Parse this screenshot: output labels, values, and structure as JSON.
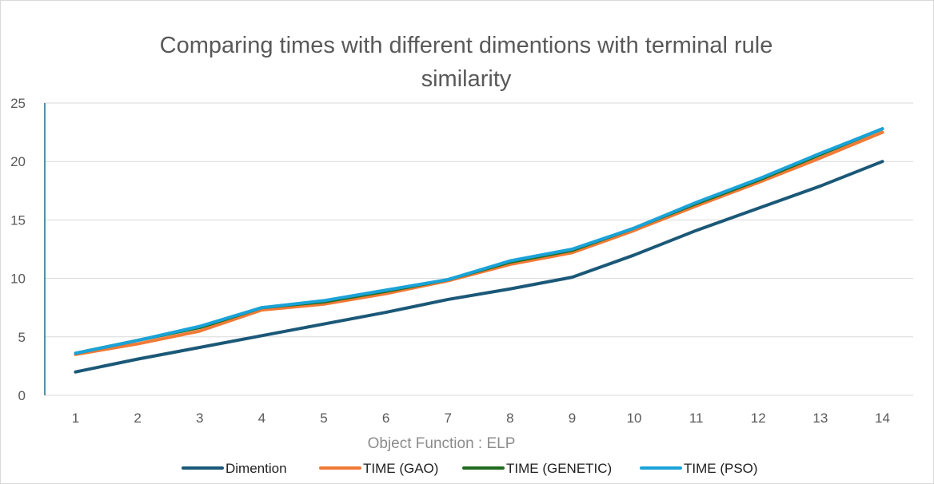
{
  "chart_data": {
    "type": "line",
    "title_line1": "Comparing  times with different dimentions with terminal rule",
    "title_line2": "similarity",
    "xlabel": "Object  Function : ELP",
    "ylabel": "",
    "categories": [
      "1",
      "2",
      "3",
      "4",
      "5",
      "6",
      "7",
      "8",
      "9",
      "10",
      "11",
      "12",
      "13",
      "14"
    ],
    "yticks": [
      "0",
      "5",
      "10",
      "15",
      "20",
      "25"
    ],
    "ylim": [
      0,
      25
    ],
    "grid": true,
    "legend_position": "bottom",
    "series": [
      {
        "name": "Dimention",
        "color": "#1b5878",
        "values": [
          2,
          3.1,
          4.1,
          5.1,
          6.1,
          7.1,
          8.2,
          9.1,
          10.1,
          12,
          14.1,
          16,
          17.9,
          20
        ]
      },
      {
        "name": "TIME (GAO)",
        "color": "#f07a36",
        "values": [
          3.5,
          4.4,
          5.5,
          7.3,
          7.8,
          8.7,
          9.8,
          11.2,
          12.2,
          14.1,
          16.2,
          18.2,
          20.3,
          22.5
        ]
      },
      {
        "name": "TIME (GENETIC)",
        "color": "#1f6b1f",
        "values": [
          3.6,
          4.7,
          5.8,
          7.5,
          8.0,
          8.9,
          9.9,
          11.4,
          12.4,
          14.3,
          16.4,
          18.4,
          20.6,
          22.8
        ]
      },
      {
        "name": "TIME (PSO)",
        "color": "#1aa3d8",
        "values": [
          3.6,
          4.7,
          5.9,
          7.5,
          8.1,
          9.0,
          9.9,
          11.5,
          12.5,
          14.3,
          16.5,
          18.5,
          20.7,
          22.8
        ]
      }
    ]
  }
}
